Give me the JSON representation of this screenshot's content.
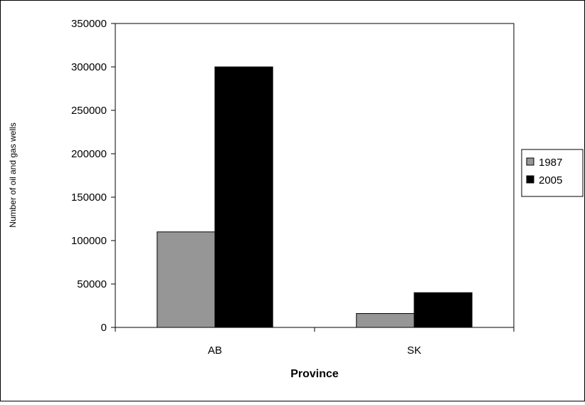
{
  "chart_data": {
    "type": "bar",
    "categories": [
      "AB",
      "SK"
    ],
    "series": [
      {
        "name": "1987",
        "values": [
          110000,
          16000
        ],
        "color": "#969696"
      },
      {
        "name": "2005",
        "values": [
          300000,
          40000
        ],
        "color": "#000000"
      }
    ],
    "title": "",
    "xlabel": "Province",
    "ylabel": "Number of oil and gas wells",
    "ylim": [
      0,
      350000
    ],
    "yticks": [
      0,
      50000,
      100000,
      150000,
      200000,
      250000,
      300000,
      350000
    ],
    "grid": false,
    "legend_position": "right"
  }
}
